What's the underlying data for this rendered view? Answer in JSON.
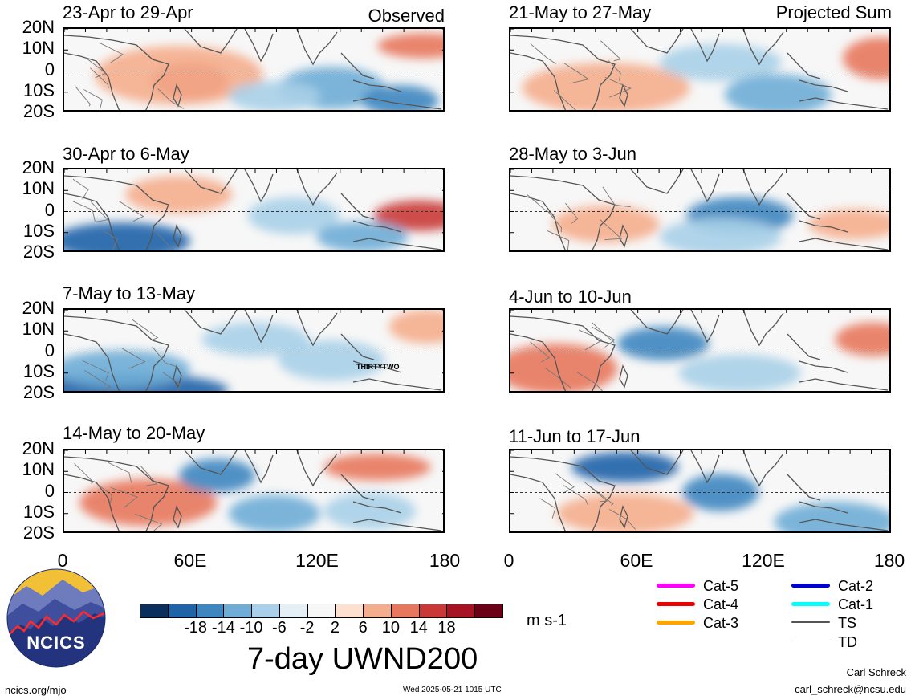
{
  "left_column": {
    "corner_label": "Observed",
    "panels": [
      {
        "title": "23-Apr to 29-Apr"
      },
      {
        "title": "30-Apr to 6-May"
      },
      {
        "title": "7-May to 13-May",
        "annotation": "THIRTYTWO"
      },
      {
        "title": "14-May to 20-May"
      }
    ]
  },
  "right_column": {
    "corner_label": "Projected Sum",
    "panels": [
      {
        "title": "21-May to 27-May"
      },
      {
        "title": "28-May to 3-Jun"
      },
      {
        "title": "4-Jun to 10-Jun"
      },
      {
        "title": "11-Jun to 17-Jun"
      }
    ]
  },
  "y_ticks": [
    "20N",
    "10N",
    "0",
    "10S",
    "20S"
  ],
  "x_ticks": [
    "0",
    "60E",
    "120E",
    "180"
  ],
  "colorbar": {
    "labels": [
      "-18",
      "-14",
      "-10",
      "-6",
      "-2",
      "2",
      "6",
      "10",
      "14",
      "18"
    ],
    "colors": [
      "#0a2f5c",
      "#1f63a8",
      "#3d86c0",
      "#6fadd6",
      "#a9d0e8",
      "#e4eff6",
      "#f7f7f7",
      "#fde0cf",
      "#f5ae8d",
      "#e8785d",
      "#c93a37",
      "#a61424",
      "#6b0016"
    ],
    "units": "m s-1",
    "title": "7-day UWND200"
  },
  "legend": [
    {
      "label": "Cat-5",
      "color": "#ff00ff"
    },
    {
      "label": "Cat-4",
      "color": "#ee0000"
    },
    {
      "label": "Cat-3",
      "color": "#ffa500"
    },
    {
      "label": "Cat-2",
      "color": "#0000cc"
    },
    {
      "label": "Cat-1",
      "color": "#00ffff"
    },
    {
      "label": "TS",
      "color": "#555555"
    },
    {
      "label": "TD",
      "color": "#aaaaaa"
    }
  ],
  "logo": {
    "text": "NCICS"
  },
  "footer": {
    "url": "ncics.org/mjo",
    "timestamp": "Wed 2025-05-21 1015 UTC",
    "author": "Carl Schreck",
    "email": "carl_schreck@ncsu.edu"
  }
}
